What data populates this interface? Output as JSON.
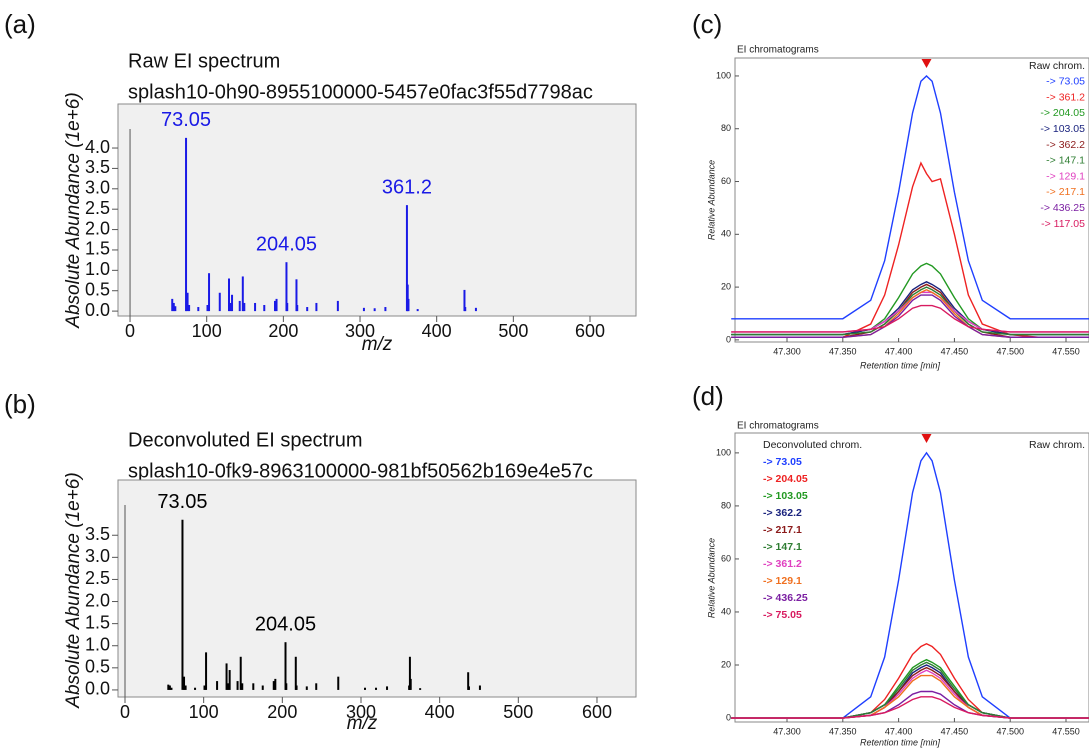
{
  "chart_data": [
    {
      "type": "stem",
      "panel_label": "(a)",
      "title": "Raw EI spectrum",
      "subtitle": "splash10-0h90-8955100000-5457e0fac3f55d7798ac",
      "x_label": "m/z",
      "y_label": "Absolute Abundance (1e+6)",
      "color": "#1a1ae6",
      "x": [
        55.05,
        57.05,
        59.05,
        73.05,
        75.05,
        77.05,
        89.05,
        101.05,
        103.05,
        117.05,
        129.1,
        131.1,
        133.05,
        143.1,
        147.1,
        149.05,
        163.1,
        175.1,
        189.1,
        191.1,
        204.05,
        205.05,
        217.1,
        218.1,
        231.1,
        243.1,
        271.1,
        305.1,
        319.1,
        333.1,
        361.2,
        362.2,
        363.2,
        375.2,
        436.25,
        437.25,
        451.2
      ],
      "values": [
        0.3,
        0.2,
        0.12,
        4.25,
        0.45,
        0.15,
        0.1,
        0.15,
        0.93,
        0.45,
        0.8,
        0.2,
        0.4,
        0.25,
        0.85,
        0.2,
        0.2,
        0.15,
        0.25,
        0.3,
        1.2,
        0.2,
        0.78,
        0.15,
        0.1,
        0.2,
        0.25,
        0.08,
        0.07,
        0.1,
        2.6,
        0.65,
        0.3,
        0.05,
        0.52,
        0.1,
        0.08
      ],
      "annotations": [
        {
          "text": "73.05",
          "x": 73.05
        },
        {
          "text": "204.05",
          "x": 204.05
        },
        {
          "text": "361.2",
          "x": 361.2
        }
      ],
      "xlim": [
        -15.7,
        660
      ],
      "ylim": [
        -0.12,
        5.08
      ],
      "xticks": [
        0,
        100,
        200,
        300,
        400,
        500,
        600
      ],
      "yticks": [
        {
          "value": 0,
          "label": "0.0"
        },
        0.5,
        {
          "value": 1,
          "label": "1.0"
        },
        1.5,
        {
          "value": 2,
          "label": "2.0"
        },
        2.5,
        {
          "value": 3,
          "label": "3.0"
        },
        3.5,
        {
          "value": 4,
          "label": "4.0"
        }
      ]
    },
    {
      "type": "stem",
      "panel_label": "(b)",
      "title": "Deconvoluted EI spectrum",
      "subtitle": "splash10-0fk9-8963100000-981bf50562b169e4e57c",
      "x_label": "m/z",
      "y_label": "Absolute Abundance (1e+6)",
      "color": "#000000",
      "x": [
        55.05,
        57.05,
        59.05,
        73.05,
        75.05,
        77.05,
        89.05,
        101.05,
        103.05,
        117.05,
        129.1,
        131.1,
        133.05,
        143.1,
        147.1,
        149.05,
        163.1,
        175.1,
        189.1,
        191.1,
        204.05,
        205.05,
        217.1,
        218.1,
        231.1,
        243.1,
        271.1,
        305.1,
        319.1,
        333.1,
        361.2,
        362.2,
        363.2,
        375.2,
        436.25,
        437.25,
        451.2
      ],
      "values": [
        0.12,
        0.1,
        0.05,
        3.85,
        0.3,
        0.1,
        0.05,
        0.1,
        0.85,
        0.2,
        0.6,
        0.15,
        0.45,
        0.2,
        0.75,
        0.15,
        0.15,
        0.1,
        0.2,
        0.25,
        1.08,
        0.15,
        0.75,
        0.1,
        0.08,
        0.15,
        0.3,
        0.05,
        0.05,
        0.08,
        0.1,
        0.75,
        0.25,
        0.04,
        0.4,
        0.08,
        0.1
      ],
      "annotations": [
        {
          "text": "73.05",
          "x": 73.05
        },
        {
          "text": "204.05",
          "x": 204.05
        }
      ],
      "xlim": [
        -8.9,
        649.6
      ],
      "ylim": [
        -0.16,
        4.75
      ],
      "xticks": [
        0,
        100,
        200,
        300,
        400,
        500,
        600
      ],
      "yticks": [
        {
          "value": 0,
          "label": "0.0"
        },
        0.5,
        {
          "value": 1,
          "label": "1.0"
        },
        1.5,
        {
          "value": 2,
          "label": "2.0"
        },
        2.5,
        {
          "value": 3,
          "label": "3.0"
        },
        3.5
      ]
    },
    {
      "type": "line",
      "panel_label": "(c)",
      "title": "EI chromatograms",
      "x_label": "Retention time [min]",
      "y_label": "Relative Abundance",
      "legend": "top right",
      "legend_title": "Raw chrom.",
      "peak_marker": 47.425,
      "x": [
        47.25,
        47.275,
        47.3,
        47.325,
        47.35,
        47.375,
        47.3875,
        47.4,
        47.4125,
        47.42,
        47.425,
        47.43,
        47.4375,
        47.45,
        47.4625,
        47.475,
        47.5,
        47.525,
        47.55,
        47.575
      ],
      "series": [
        {
          "name": "-> 73.05",
          "color": "#1f3fff",
          "values": [
            8,
            8,
            8,
            8,
            8,
            15,
            30,
            56,
            86,
            98,
            100,
            98,
            86,
            56,
            30,
            15,
            8,
            8,
            8,
            8
          ]
        },
        {
          "name": "-> 361.2",
          "color": "#ee2222",
          "values": [
            1,
            1,
            1,
            1,
            1,
            6,
            17,
            36,
            58,
            67,
            63,
            60,
            61,
            40,
            17,
            6,
            2,
            1,
            1,
            1
          ]
        },
        {
          "name": "-> 204.05",
          "color": "#229922",
          "values": [
            2,
            2,
            2,
            2,
            2,
            4,
            8,
            16,
            25,
            28,
            29,
            28,
            25,
            16,
            8,
            4,
            2,
            2,
            2,
            2
          ]
        },
        {
          "name": "-> 103.05",
          "color": "#1a237e",
          "values": [
            2,
            2,
            2,
            2,
            2,
            4,
            7,
            12,
            19,
            21,
            22,
            21,
            19,
            12,
            7,
            4,
            2,
            2,
            2,
            2
          ]
        },
        {
          "name": "-> 362.2",
          "color": "#8b1a1a",
          "values": [
            1,
            1,
            1,
            1,
            1,
            3,
            6,
            11,
            18,
            20,
            21,
            20,
            18,
            11,
            6,
            3,
            1,
            1,
            1,
            1
          ]
        },
        {
          "name": "-> 147.1",
          "color": "#2e7d32",
          "values": [
            2,
            2,
            2,
            2,
            2,
            3,
            6,
            11,
            17,
            19,
            20,
            19,
            17,
            11,
            6,
            3,
            2,
            2,
            2,
            2
          ]
        },
        {
          "name": "-> 129.1",
          "color": "#e040c0",
          "values": [
            3,
            3,
            3,
            3,
            3,
            4,
            7,
            11,
            16,
            18,
            18,
            18,
            16,
            11,
            7,
            4,
            3,
            3,
            3,
            3
          ]
        },
        {
          "name": "-> 217.1",
          "color": "#f07020",
          "values": [
            1,
            1,
            1,
            1,
            1,
            2,
            5,
            10,
            16,
            18,
            19,
            18,
            16,
            10,
            5,
            2,
            1,
            1,
            1,
            1
          ]
        },
        {
          "name": "-> 436.25",
          "color": "#7b1fa2",
          "values": [
            1,
            1,
            1,
            1,
            1,
            2,
            5,
            9,
            15,
            17,
            17,
            17,
            15,
            9,
            5,
            2,
            1,
            1,
            1,
            1
          ]
        },
        {
          "name": "-> 117.05",
          "color": "#d81b60",
          "values": [
            3,
            3,
            3,
            3,
            3,
            4,
            5,
            8,
            12,
            13,
            13,
            13,
            12,
            8,
            5,
            4,
            3,
            3,
            3,
            3
          ]
        }
      ],
      "xlim": [
        47.2534,
        47.5706
      ],
      "ylim": [
        -0.8,
        106.8
      ],
      "xticks": [
        {
          "value": 47.3,
          "label": "47.300"
        },
        {
          "value": 47.35,
          "label": "47.350"
        },
        {
          "value": 47.4,
          "label": "47.400"
        },
        {
          "value": 47.45,
          "label": "47.450"
        },
        {
          "value": 47.5,
          "label": "47.500"
        },
        {
          "value": 47.55,
          "label": "47.550"
        }
      ],
      "yticks": [
        0,
        20,
        40,
        60,
        80,
        100
      ]
    },
    {
      "type": "line",
      "panel_label": "(d)",
      "title": "EI chromatograms",
      "x_label": "Retention time [min]",
      "y_label": "Relative Abundance",
      "legend": "top left",
      "legend_title": "Deconvoluted chrom.",
      "legend_note": "Raw chrom.",
      "peak_marker": 47.425,
      "x": [
        47.25,
        47.275,
        47.3,
        47.325,
        47.35,
        47.375,
        47.3875,
        47.4,
        47.4125,
        47.42,
        47.425,
        47.43,
        47.4375,
        47.45,
        47.4625,
        47.475,
        47.5,
        47.525,
        47.55,
        47.575
      ],
      "series": [
        {
          "name": "-> 73.05",
          "color": "#1f3fff",
          "values": [
            0,
            0,
            0,
            0,
            0,
            8,
            23,
            52,
            85,
            97,
            100,
            97,
            85,
            52,
            23,
            8,
            0,
            0,
            0,
            0
          ]
        },
        {
          "name": "-> 204.05",
          "color": "#ee2222",
          "values": [
            0,
            0,
            0,
            0,
            0,
            2,
            7,
            15,
            24,
            27,
            28,
            27,
            24,
            15,
            7,
            2,
            0,
            0,
            0,
            0
          ]
        },
        {
          "name": "-> 103.05",
          "color": "#229922",
          "values": [
            0,
            0,
            0,
            0,
            0,
            2,
            5,
            12,
            19,
            21,
            22,
            21,
            19,
            12,
            5,
            2,
            0,
            0,
            0,
            0
          ]
        },
        {
          "name": "-> 362.2",
          "color": "#1a237e",
          "values": [
            0,
            0,
            0,
            0,
            0,
            2,
            5,
            10,
            17,
            19,
            20,
            19,
            17,
            10,
            5,
            2,
            0,
            0,
            0,
            0
          ]
        },
        {
          "name": "-> 217.1",
          "color": "#8b1a1a",
          "values": [
            0,
            0,
            0,
            0,
            0,
            1,
            4,
            10,
            16,
            18,
            19,
            18,
            16,
            10,
            4,
            1,
            0,
            0,
            0,
            0
          ]
        },
        {
          "name": "-> 147.1",
          "color": "#2e7d32",
          "values": [
            0,
            0,
            0,
            0,
            0,
            2,
            5,
            11,
            18,
            20,
            21,
            20,
            18,
            11,
            5,
            2,
            0,
            0,
            0,
            0
          ]
        },
        {
          "name": "-> 361.2",
          "color": "#e040c0",
          "values": [
            0,
            0,
            0,
            0,
            0,
            1,
            4,
            9,
            15,
            17,
            18,
            17,
            15,
            9,
            4,
            1,
            0,
            0,
            0,
            0
          ]
        },
        {
          "name": "-> 129.1",
          "color": "#f07020",
          "values": [
            0,
            0,
            0,
            0,
            0,
            1,
            4,
            8,
            14,
            16,
            16,
            16,
            14,
            8,
            4,
            1,
            0,
            0,
            0,
            0
          ]
        },
        {
          "name": "-> 436.25",
          "color": "#7b1fa2",
          "values": [
            0,
            0,
            0,
            0,
            0,
            1,
            2,
            5,
            9,
            10,
            10,
            10,
            9,
            5,
            2,
            1,
            0,
            0,
            0,
            0
          ]
        },
        {
          "name": "-> 75.05",
          "color": "#d81b60",
          "values": [
            0,
            0,
            0,
            0,
            0,
            1,
            2,
            4,
            7,
            8,
            8,
            8,
            7,
            4,
            2,
            1,
            0,
            0,
            0,
            0
          ]
        }
      ],
      "xlim": [
        47.2534,
        47.5706
      ],
      "ylim": [
        -1.5,
        107.5
      ],
      "xticks": [
        {
          "value": 47.3,
          "label": "47.300"
        },
        {
          "value": 47.35,
          "label": "47.350"
        },
        {
          "value": 47.4,
          "label": "47.400"
        },
        {
          "value": 47.45,
          "label": "47.450"
        },
        {
          "value": 47.5,
          "label": "47.500"
        },
        {
          "value": 47.55,
          "label": "47.550"
        }
      ],
      "yticks": [
        0,
        20,
        40,
        60,
        80,
        100
      ]
    }
  ]
}
